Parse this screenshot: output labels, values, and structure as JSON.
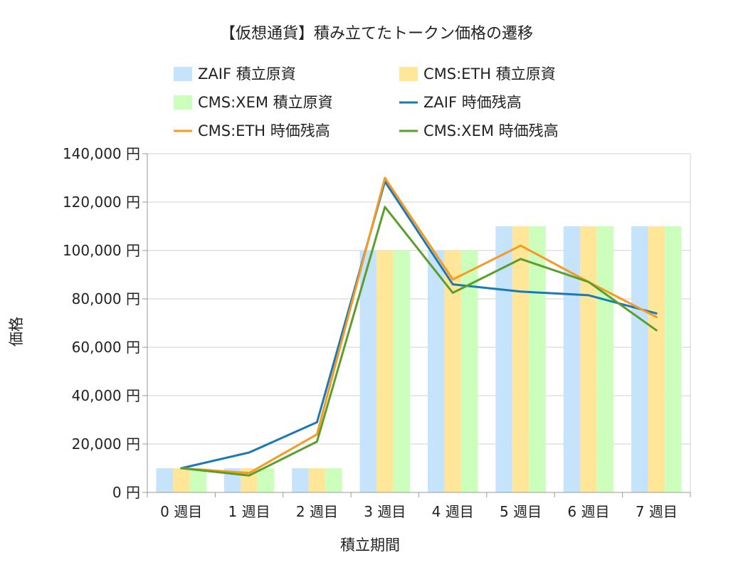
{
  "chart_data": {
    "type": "bar",
    "title": "【仮想通貨】積み立てたトークン価格の遷移",
    "xlabel": "積立期間",
    "ylabel": "価格",
    "ylim": [
      0,
      140000
    ],
    "y_ticks": [
      0,
      20000,
      40000,
      60000,
      80000,
      100000,
      120000,
      140000
    ],
    "y_tick_labels": [
      "0 円",
      "20,000 円",
      "40,000 円",
      "60,000 円",
      "80,000 円",
      "100,000 円",
      "120,000 円",
      "140,000 円"
    ],
    "categories": [
      "0 週目",
      "1 週目",
      "2 週目",
      "3 週目",
      "4 週目",
      "5 週目",
      "6 週目",
      "7 週目"
    ],
    "grid": true,
    "legend_position": "top",
    "series": [
      {
        "name": "ZAIF  積立原資",
        "kind": "bar",
        "color": "#c5e3fb",
        "values": [
          10000,
          10000,
          10000,
          100000,
          100000,
          110000,
          110000,
          110000
        ]
      },
      {
        "name": "CMS:ETH  積立原資",
        "kind": "bar",
        "color": "#ffe699",
        "values": [
          10000,
          10000,
          10000,
          100000,
          100000,
          110000,
          110000,
          110000
        ]
      },
      {
        "name": "CMS:XEM  積立原資",
        "kind": "bar",
        "color": "#ccffbb",
        "values": [
          10000,
          10000,
          10000,
          100000,
          100000,
          110000,
          110000,
          110000
        ]
      },
      {
        "name": "ZAIF  時価残高",
        "kind": "line",
        "color": "#1b7ab5",
        "values": [
          10000,
          16500,
          29000,
          128500,
          86000,
          83000,
          81500,
          74000
        ]
      },
      {
        "name": "CMS:ETH  時価残高",
        "kind": "line",
        "color": "#f59a23",
        "values": [
          10000,
          8000,
          24000,
          130000,
          88000,
          102000,
          87000,
          72500
        ]
      },
      {
        "name": "CMS:XEM  時価残高",
        "kind": "line",
        "color": "#5c9e2e",
        "values": [
          10000,
          7000,
          21000,
          118000,
          82500,
          96500,
          87000,
          67000
        ]
      }
    ]
  }
}
